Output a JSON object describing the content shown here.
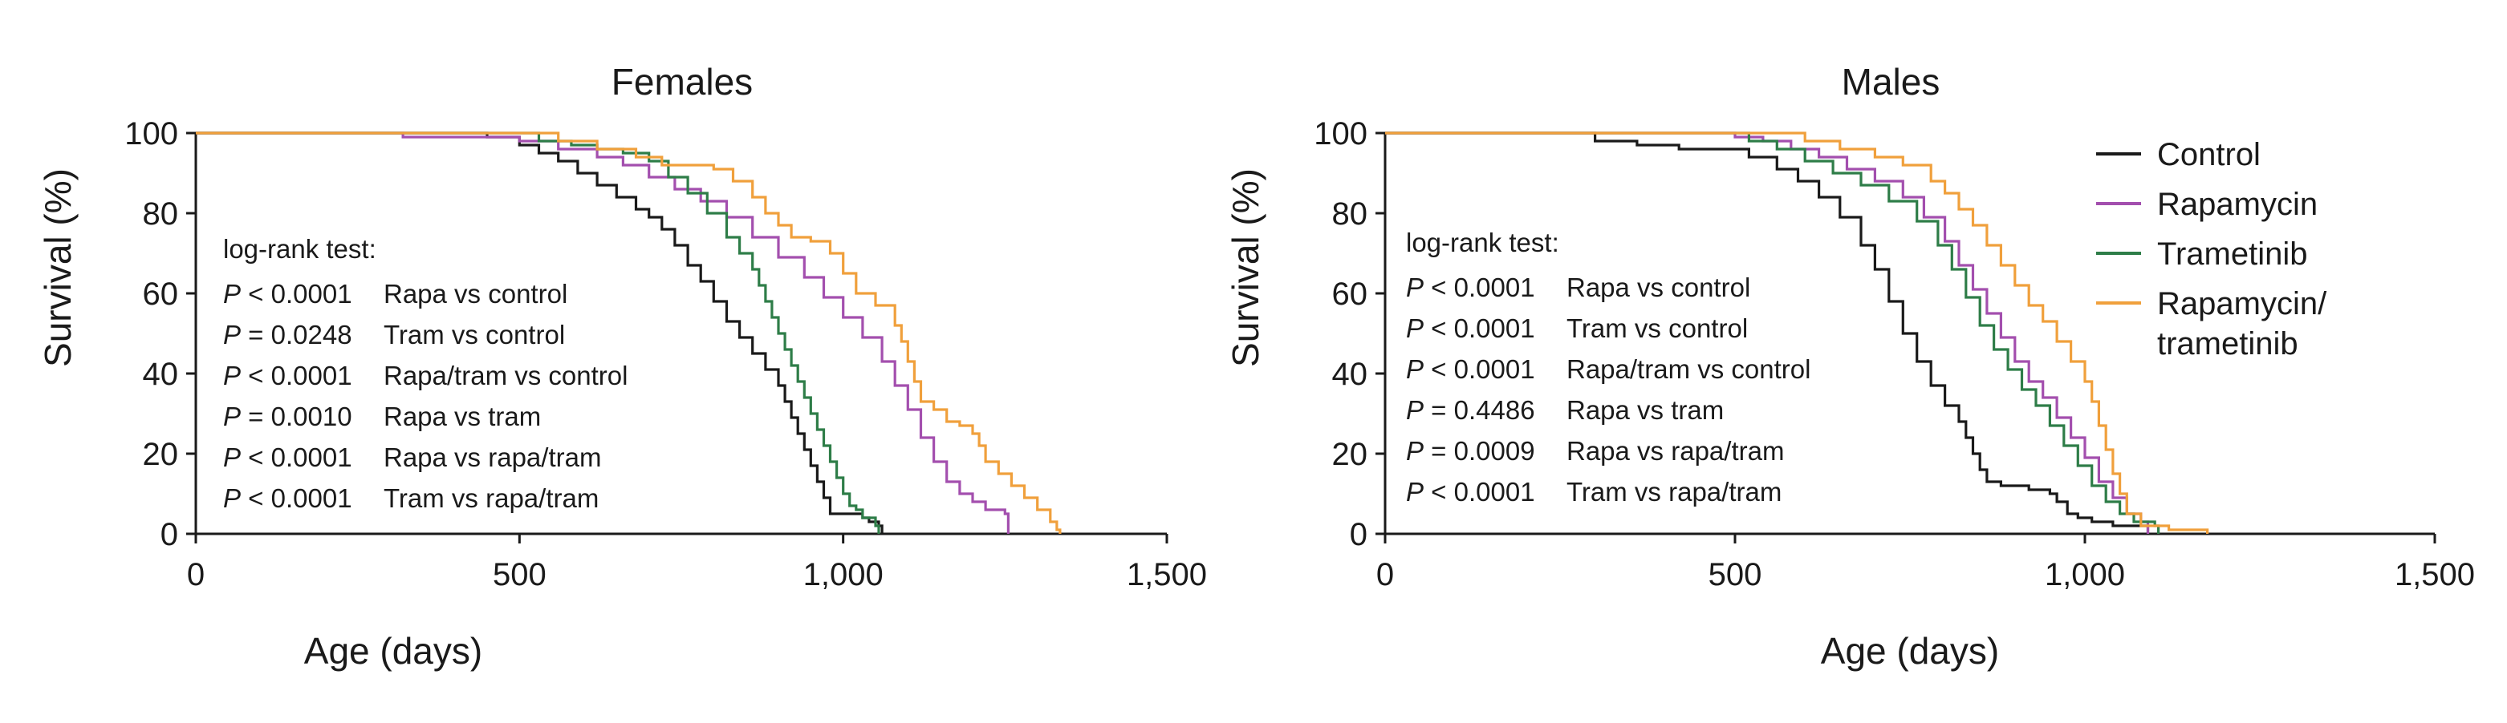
{
  "chart_data": [
    {
      "type": "line",
      "title": "Females",
      "xlabel": "Age (days)",
      "ylabel": "Survival (%)",
      "xlim": [
        0,
        1500
      ],
      "ylim": [
        0,
        100
      ],
      "xticks": [
        0,
        500,
        1000,
        1500
      ],
      "xtick_labels": [
        "0",
        "500",
        "1,000",
        "1,500"
      ],
      "yticks": [
        0,
        20,
        40,
        60,
        80,
        100
      ],
      "ytick_labels": [
        "0",
        "20",
        "40",
        "60",
        "80",
        "100"
      ],
      "annotation_header": "log-rank test:",
      "annotations": [
        {
          "p": "P < 0.0001",
          "comparison": "Rapa vs control"
        },
        {
          "p": "P = 0.0248",
          "comparison": "Tram vs control"
        },
        {
          "p": "P < 0.0001",
          "comparison": "Rapa/tram vs control"
        },
        {
          "p": "P = 0.0010",
          "comparison": "Rapa vs tram"
        },
        {
          "p": "P < 0.0001",
          "comparison": "Rapa vs rapa/tram"
        },
        {
          "p": "P < 0.0001",
          "comparison": "Tram vs rapa/tram"
        }
      ],
      "series": [
        {
          "name": "Control",
          "color": "#1a1a1a",
          "points": [
            [
              0,
              100
            ],
            [
              380,
              100
            ],
            [
              450,
              99
            ],
            [
              500,
              97
            ],
            [
              530,
              95
            ],
            [
              560,
              93
            ],
            [
              590,
              90
            ],
            [
              620,
              87
            ],
            [
              650,
              84
            ],
            [
              680,
              81
            ],
            [
              700,
              79
            ],
            [
              720,
              76
            ],
            [
              740,
              72
            ],
            [
              760,
              67
            ],
            [
              780,
              63
            ],
            [
              800,
              58
            ],
            [
              820,
              53
            ],
            [
              840,
              49
            ],
            [
              860,
              45
            ],
            [
              880,
              41
            ],
            [
              900,
              37
            ],
            [
              910,
              33
            ],
            [
              920,
              29
            ],
            [
              930,
              25
            ],
            [
              940,
              21
            ],
            [
              950,
              17
            ],
            [
              960,
              13
            ],
            [
              970,
              9
            ],
            [
              980,
              5
            ],
            [
              1030,
              4
            ],
            [
              1040,
              3
            ],
            [
              1055,
              2
            ],
            [
              1060,
              0
            ]
          ]
        },
        {
          "name": "Rapamycin",
          "color": "#a34fae",
          "points": [
            [
              0,
              100
            ],
            [
              320,
              99
            ],
            [
              420,
              99
            ],
            [
              500,
              98
            ],
            [
              560,
              96
            ],
            [
              620,
              94
            ],
            [
              660,
              92
            ],
            [
              700,
              89
            ],
            [
              740,
              86
            ],
            [
              780,
              83
            ],
            [
              820,
              79
            ],
            [
              860,
              74
            ],
            [
              900,
              69
            ],
            [
              940,
              64
            ],
            [
              970,
              59
            ],
            [
              1000,
              54
            ],
            [
              1030,
              49
            ],
            [
              1060,
              43
            ],
            [
              1080,
              37
            ],
            [
              1100,
              31
            ],
            [
              1120,
              24
            ],
            [
              1140,
              18
            ],
            [
              1160,
              13
            ],
            [
              1180,
              10
            ],
            [
              1200,
              8
            ],
            [
              1220,
              6
            ],
            [
              1250,
              5
            ],
            [
              1255,
              0
            ]
          ]
        },
        {
          "name": "Trametinib",
          "color": "#2e7d48",
          "points": [
            [
              0,
              100
            ],
            [
              440,
              100
            ],
            [
              530,
              98
            ],
            [
              580,
              97
            ],
            [
              620,
              96
            ],
            [
              660,
              95
            ],
            [
              700,
              93
            ],
            [
              730,
              89
            ],
            [
              760,
              85
            ],
            [
              790,
              80
            ],
            [
              820,
              74
            ],
            [
              840,
              70
            ],
            [
              860,
              66
            ],
            [
              870,
              62
            ],
            [
              880,
              58
            ],
            [
              890,
              54
            ],
            [
              900,
              50
            ],
            [
              910,
              46
            ],
            [
              920,
              42
            ],
            [
              930,
              38
            ],
            [
              940,
              34
            ],
            [
              950,
              30
            ],
            [
              960,
              26
            ],
            [
              970,
              22
            ],
            [
              980,
              18
            ],
            [
              990,
              14
            ],
            [
              1000,
              10
            ],
            [
              1010,
              7
            ],
            [
              1020,
              6
            ],
            [
              1030,
              4
            ],
            [
              1050,
              2
            ],
            [
              1055,
              0
            ]
          ]
        },
        {
          "name": "Rapamycin/\ntrametinib",
          "color": "#f0a03c",
          "points": [
            [
              0,
              100
            ],
            [
              460,
              100
            ],
            [
              560,
              98
            ],
            [
              620,
              96
            ],
            [
              680,
              94
            ],
            [
              720,
              92
            ],
            [
              760,
              92
            ],
            [
              800,
              91
            ],
            [
              830,
              88
            ],
            [
              860,
              84
            ],
            [
              880,
              80
            ],
            [
              900,
              77
            ],
            [
              920,
              74
            ],
            [
              950,
              73
            ],
            [
              980,
              70
            ],
            [
              1000,
              65
            ],
            [
              1020,
              60
            ],
            [
              1050,
              57
            ],
            [
              1080,
              52
            ],
            [
              1090,
              48
            ],
            [
              1100,
              43
            ],
            [
              1110,
              38
            ],
            [
              1120,
              33
            ],
            [
              1140,
              31
            ],
            [
              1160,
              28
            ],
            [
              1180,
              27
            ],
            [
              1200,
              25
            ],
            [
              1210,
              22
            ],
            [
              1220,
              18
            ],
            [
              1240,
              15
            ],
            [
              1260,
              12
            ],
            [
              1280,
              9
            ],
            [
              1300,
              6
            ],
            [
              1320,
              3
            ],
            [
              1330,
              1
            ],
            [
              1335,
              0
            ]
          ]
        }
      ]
    },
    {
      "type": "line",
      "title": "Males",
      "xlabel": "Age (days)",
      "ylabel": "Survival (%)",
      "xlim": [
        0,
        1500
      ],
      "ylim": [
        0,
        100
      ],
      "xticks": [
        0,
        500,
        1000,
        1500
      ],
      "xtick_labels": [
        "0",
        "500",
        "1,000",
        "1,500"
      ],
      "yticks": [
        0,
        20,
        40,
        60,
        80,
        100
      ],
      "ytick_labels": [
        "0",
        "20",
        "40",
        "60",
        "80",
        "100"
      ],
      "legend_position": "top-right",
      "annotation_header": "log-rank test:",
      "annotations": [
        {
          "p": "P < 0.0001",
          "comparison": "Rapa vs control"
        },
        {
          "p": "P < 0.0001",
          "comparison": "Tram vs control"
        },
        {
          "p": "P < 0.0001",
          "comparison": "Rapa/tram vs control"
        },
        {
          "p": "P = 0.4486",
          "comparison": "Rapa vs tram"
        },
        {
          "p": "P = 0.0009",
          "comparison": "Rapa vs rapa/tram"
        },
        {
          "p": "P < 0.0001",
          "comparison": "Tram vs rapa/tram"
        }
      ],
      "series": [
        {
          "name": "Control",
          "color": "#1a1a1a",
          "points": [
            [
              0,
              100
            ],
            [
              260,
              100
            ],
            [
              300,
              98
            ],
            [
              360,
              97
            ],
            [
              420,
              96
            ],
            [
              480,
              96
            ],
            [
              520,
              94
            ],
            [
              560,
              91
            ],
            [
              590,
              88
            ],
            [
              620,
              84
            ],
            [
              650,
              79
            ],
            [
              680,
              72
            ],
            [
              700,
              66
            ],
            [
              720,
              58
            ],
            [
              740,
              50
            ],
            [
              760,
              43
            ],
            [
              780,
              37
            ],
            [
              800,
              32
            ],
            [
              820,
              28
            ],
            [
              830,
              24
            ],
            [
              840,
              20
            ],
            [
              850,
              16
            ],
            [
              860,
              13
            ],
            [
              880,
              12
            ],
            [
              920,
              11
            ],
            [
              950,
              10
            ],
            [
              960,
              8
            ],
            [
              975,
              5
            ],
            [
              990,
              4
            ],
            [
              1010,
              3
            ],
            [
              1040,
              2
            ],
            [
              1080,
              2
            ],
            [
              1090,
              0
            ]
          ]
        },
        {
          "name": "Rapamycin",
          "color": "#a34fae",
          "points": [
            [
              0,
              100
            ],
            [
              480,
              100
            ],
            [
              500,
              99
            ],
            [
              540,
              98
            ],
            [
              580,
              96
            ],
            [
              620,
              94
            ],
            [
              660,
              91
            ],
            [
              700,
              88
            ],
            [
              740,
              84
            ],
            [
              770,
              79
            ],
            [
              800,
              73
            ],
            [
              820,
              67
            ],
            [
              840,
              61
            ],
            [
              860,
              55
            ],
            [
              880,
              49
            ],
            [
              900,
              43
            ],
            [
              920,
              38
            ],
            [
              940,
              34
            ],
            [
              960,
              29
            ],
            [
              980,
              24
            ],
            [
              1000,
              19
            ],
            [
              1020,
              13
            ],
            [
              1040,
              9
            ],
            [
              1060,
              5
            ],
            [
              1080,
              3
            ],
            [
              1090,
              0
            ]
          ]
        },
        {
          "name": "Trametinib",
          "color": "#2e7d48",
          "points": [
            [
              0,
              100
            ],
            [
              480,
              100
            ],
            [
              520,
              98
            ],
            [
              560,
              96
            ],
            [
              600,
              93
            ],
            [
              640,
              90
            ],
            [
              680,
              87
            ],
            [
              720,
              83
            ],
            [
              760,
              78
            ],
            [
              790,
              72
            ],
            [
              810,
              66
            ],
            [
              830,
              59
            ],
            [
              850,
              52
            ],
            [
              870,
              46
            ],
            [
              890,
              41
            ],
            [
              910,
              36
            ],
            [
              930,
              32
            ],
            [
              950,
              27
            ],
            [
              970,
              22
            ],
            [
              990,
              17
            ],
            [
              1010,
              12
            ],
            [
              1030,
              8
            ],
            [
              1050,
              5
            ],
            [
              1070,
              3
            ],
            [
              1100,
              2
            ],
            [
              1105,
              0
            ]
          ]
        },
        {
          "name": "Rapamycin/\ntrametinib",
          "color": "#f0a03c",
          "points": [
            [
              0,
              100
            ],
            [
              560,
              100
            ],
            [
              600,
              98
            ],
            [
              650,
              96
            ],
            [
              700,
              94
            ],
            [
              740,
              92
            ],
            [
              780,
              88
            ],
            [
              800,
              85
            ],
            [
              820,
              81
            ],
            [
              840,
              77
            ],
            [
              860,
              72
            ],
            [
              880,
              67
            ],
            [
              900,
              62
            ],
            [
              920,
              57
            ],
            [
              940,
              53
            ],
            [
              960,
              48
            ],
            [
              980,
              43
            ],
            [
              1000,
              38
            ],
            [
              1010,
              33
            ],
            [
              1020,
              27
            ],
            [
              1030,
              21
            ],
            [
              1040,
              15
            ],
            [
              1050,
              10
            ],
            [
              1060,
              5
            ],
            [
              1080,
              2
            ],
            [
              1120,
              1
            ],
            [
              1170,
              1
            ],
            [
              1175,
              0
            ]
          ]
        }
      ]
    }
  ]
}
